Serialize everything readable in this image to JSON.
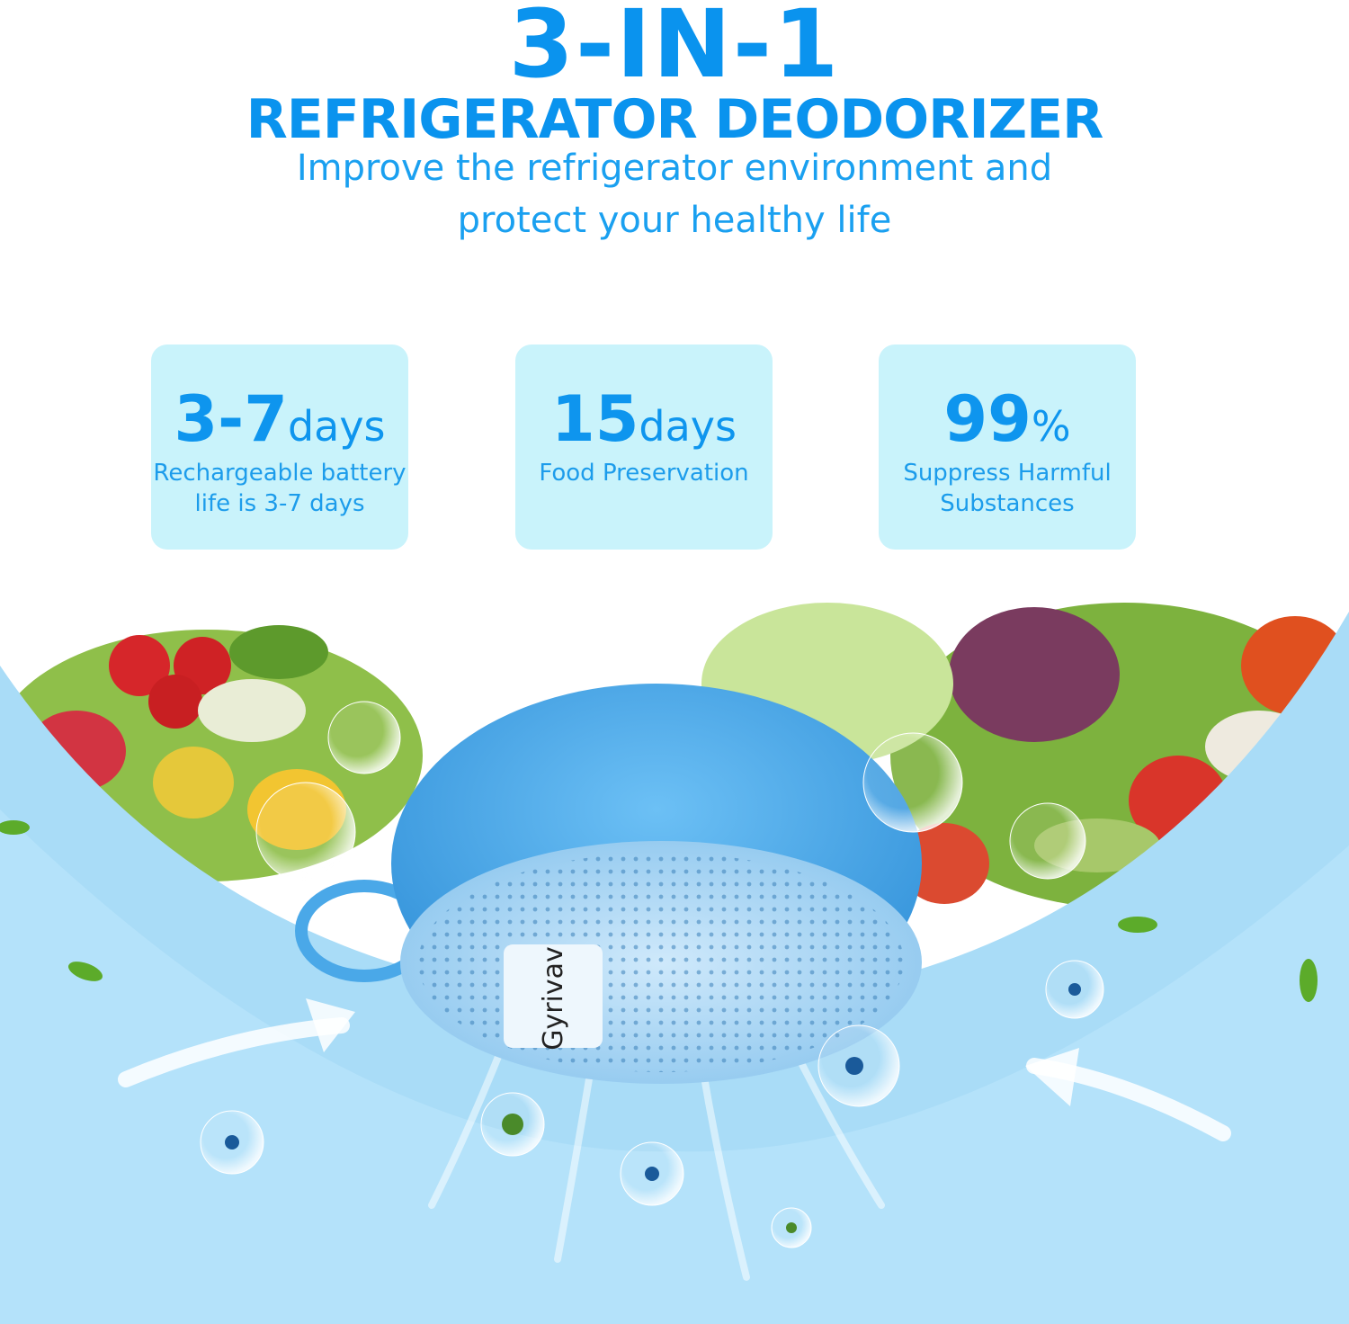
{
  "header": {
    "title": "3-IN-1",
    "subtitle": "REFRIGERATOR DEODORIZER",
    "tagline_line1": "Improve the refrigerator environment and",
    "tagline_line2": "protect your healthy life"
  },
  "features": [
    {
      "number": "3-7",
      "unit": "days",
      "desc_line1": "Rechargeable battery",
      "desc_line2": "life is 3-7 days"
    },
    {
      "number": "15",
      "unit": "days",
      "desc_line1": "Food Preservation",
      "desc_line2": ""
    },
    {
      "number": "99",
      "unit": "%",
      "desc_line1": "Suppress Harmful",
      "desc_line2": "Substances"
    }
  ],
  "product": {
    "brand": "Gyrivav"
  },
  "colors": {
    "accent": "#0a93ee",
    "card_bg": "#c9f3fb",
    "scene_bg": "#a9dcf7",
    "device": "#4aa8e8"
  }
}
